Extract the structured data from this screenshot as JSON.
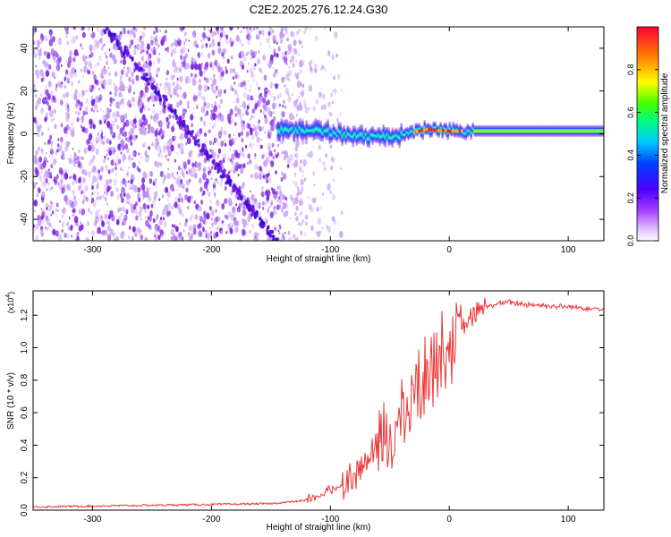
{
  "title": "C2E2.2025.276.12.24.G30",
  "colors": {
    "snr_line": "#ee3333",
    "spectrum_cloud": "#7a1fe0",
    "spectrum_cloud_light": "#c9a3f7",
    "axis": "#000000"
  },
  "chart_data": [
    {
      "type": "heatmap",
      "name": "spectrogram",
      "xlabel": "Height of straight line (km)",
      "ylabel": "Frequency (Hz)",
      "xlim": [
        -350,
        130
      ],
      "ylim": [
        -50,
        50
      ],
      "xticks": [
        -300,
        -200,
        -100,
        0,
        100
      ],
      "xtick_labels": [
        "-300",
        "-200",
        "-100",
        "0",
        "100"
      ],
      "yticks": [
        -40,
        -20,
        0,
        20,
        40
      ],
      "ytick_labels": [
        "-40",
        "-20",
        "0",
        "20",
        "40"
      ],
      "noise_region_x": [
        -350,
        -120
      ],
      "diagonal_streak": {
        "from": [
          -290,
          50
        ],
        "to": [
          -145,
          -50
        ]
      },
      "signal_band": {
        "x": [
          -145,
          -120,
          -100,
          -80,
          -60,
          -40,
          -20,
          0,
          20,
          60,
          100,
          130
        ],
        "freq": [
          1.5,
          1.8,
          0.5,
          -0.8,
          -1.6,
          -0.5,
          2.0,
          1.2,
          1.3,
          1.3,
          1.3,
          1.3
        ]
      },
      "colorbar": {
        "label": "Normalized spectral amplitude",
        "range": [
          0.0,
          1.0
        ],
        "ticks": [
          0.0,
          0.2,
          0.4,
          0.6,
          0.8
        ],
        "tick_labels": [
          "0.0",
          "0.2",
          "0.4",
          "0.6",
          "0.8"
        ]
      }
    },
    {
      "type": "line",
      "name": "snr",
      "xlabel": "Height of straight line (km)",
      "ylabel": "SNR (10 * v/v)",
      "y_multiplier_label": "(x10",
      "y_multiplier_exponent": "4",
      "y_multiplier_close": ")",
      "xlim": [
        -350,
        130
      ],
      "ylim": [
        0.0,
        1.35
      ],
      "xticks": [
        -300,
        -200,
        -100,
        0,
        100
      ],
      "xtick_labels": [
        "-300",
        "-200",
        "-100",
        "0",
        "100"
      ],
      "yticks": [
        0.0,
        0.2,
        0.4,
        0.6,
        0.8,
        1.0,
        1.2
      ],
      "ytick_labels": [
        "0.0",
        "0.2",
        "0.4",
        "0.6",
        "0.8",
        "1.0",
        "1.2"
      ],
      "series": [
        {
          "name": "SNR",
          "x": [
            -350,
            -300,
            -250,
            -200,
            -150,
            -120,
            -100,
            -90,
            -80,
            -70,
            -60,
            -50,
            -40,
            -30,
            -20,
            -10,
            0,
            10,
            20,
            30,
            40,
            50,
            60,
            80,
            100,
            130
          ],
          "y": [
            0.02,
            0.025,
            0.03,
            0.035,
            0.04,
            0.06,
            0.12,
            0.16,
            0.22,
            0.3,
            0.38,
            0.46,
            0.55,
            0.72,
            0.82,
            0.95,
            1.02,
            1.1,
            1.2,
            1.25,
            1.27,
            1.28,
            1.27,
            1.26,
            1.25,
            1.24
          ]
        }
      ]
    }
  ]
}
